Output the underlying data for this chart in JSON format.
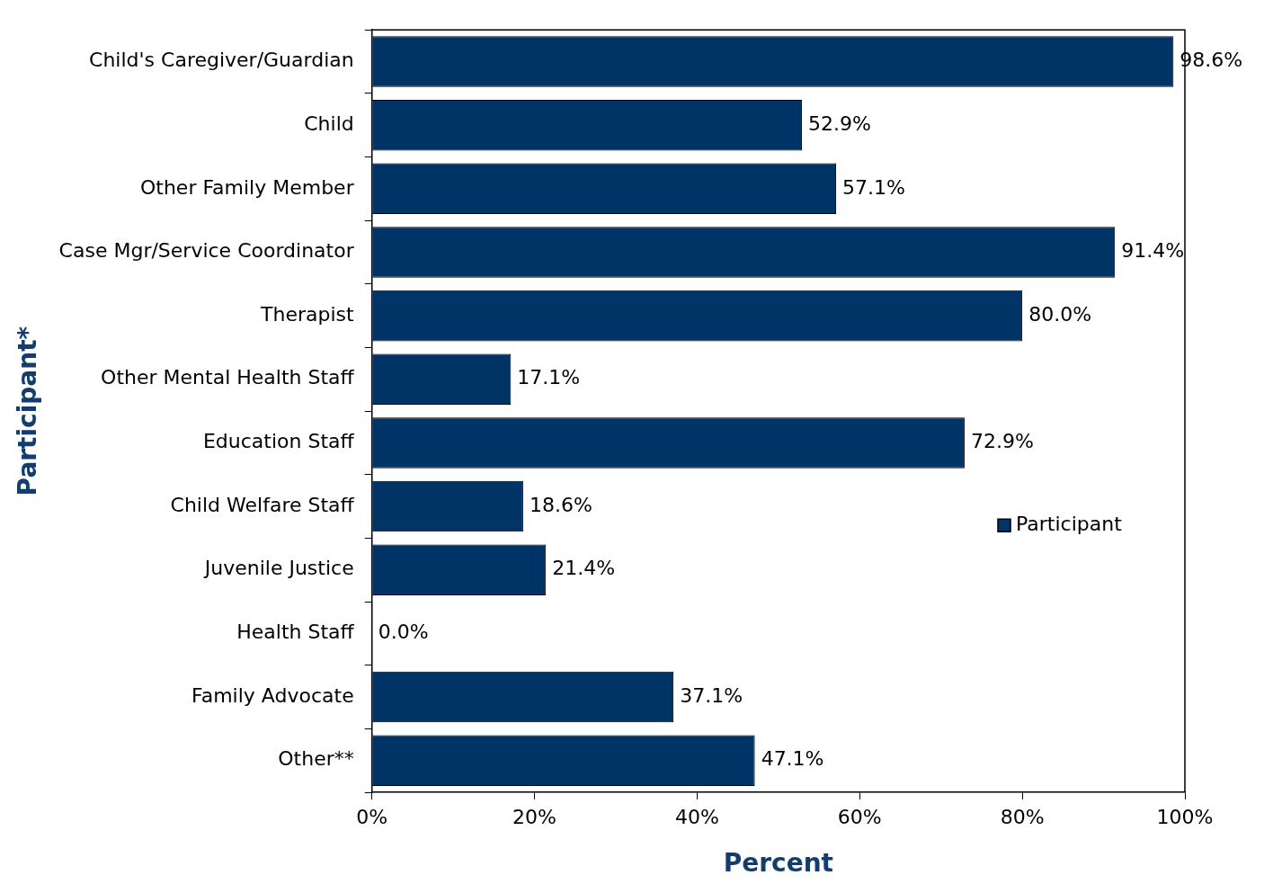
{
  "chart_data": {
    "type": "bar",
    "orientation": "horizontal",
    "xlabel": "Percent",
    "ylabel": "Participant*",
    "categories": [
      "Child's Caregiver/Guardian",
      "Child",
      "Other Family Member",
      "Case Mgr/Service Coordinator",
      "Therapist",
      "Other Mental Health Staff",
      "Education Staff",
      "Child Welfare Staff",
      "Juvenile Justice",
      "Health Staff",
      "Family Advocate",
      "Other**"
    ],
    "series": [
      {
        "name": "Participant",
        "color": "#003366",
        "values": [
          98.6,
          52.9,
          57.1,
          91.4,
          80.0,
          17.1,
          72.9,
          18.6,
          21.4,
          0.0,
          37.1,
          47.1
        ],
        "value_labels": [
          "98.6%",
          "52.9%",
          "57.1%",
          "91.4%",
          "80.0%",
          "17.1%",
          "72.9%",
          "18.6%",
          "21.4%",
          "0.0%",
          "37.1%",
          "47.1%"
        ]
      }
    ],
    "xlim": [
      0,
      100
    ],
    "xticks": [
      {
        "value": 0,
        "label": "0%"
      },
      {
        "value": 20,
        "label": "20%"
      },
      {
        "value": 40,
        "label": "40%"
      },
      {
        "value": 60,
        "label": "60%"
      },
      {
        "value": 80,
        "label": "80%"
      },
      {
        "value": 100,
        "label": "100%"
      }
    ],
    "grid": false,
    "legend": "right"
  }
}
